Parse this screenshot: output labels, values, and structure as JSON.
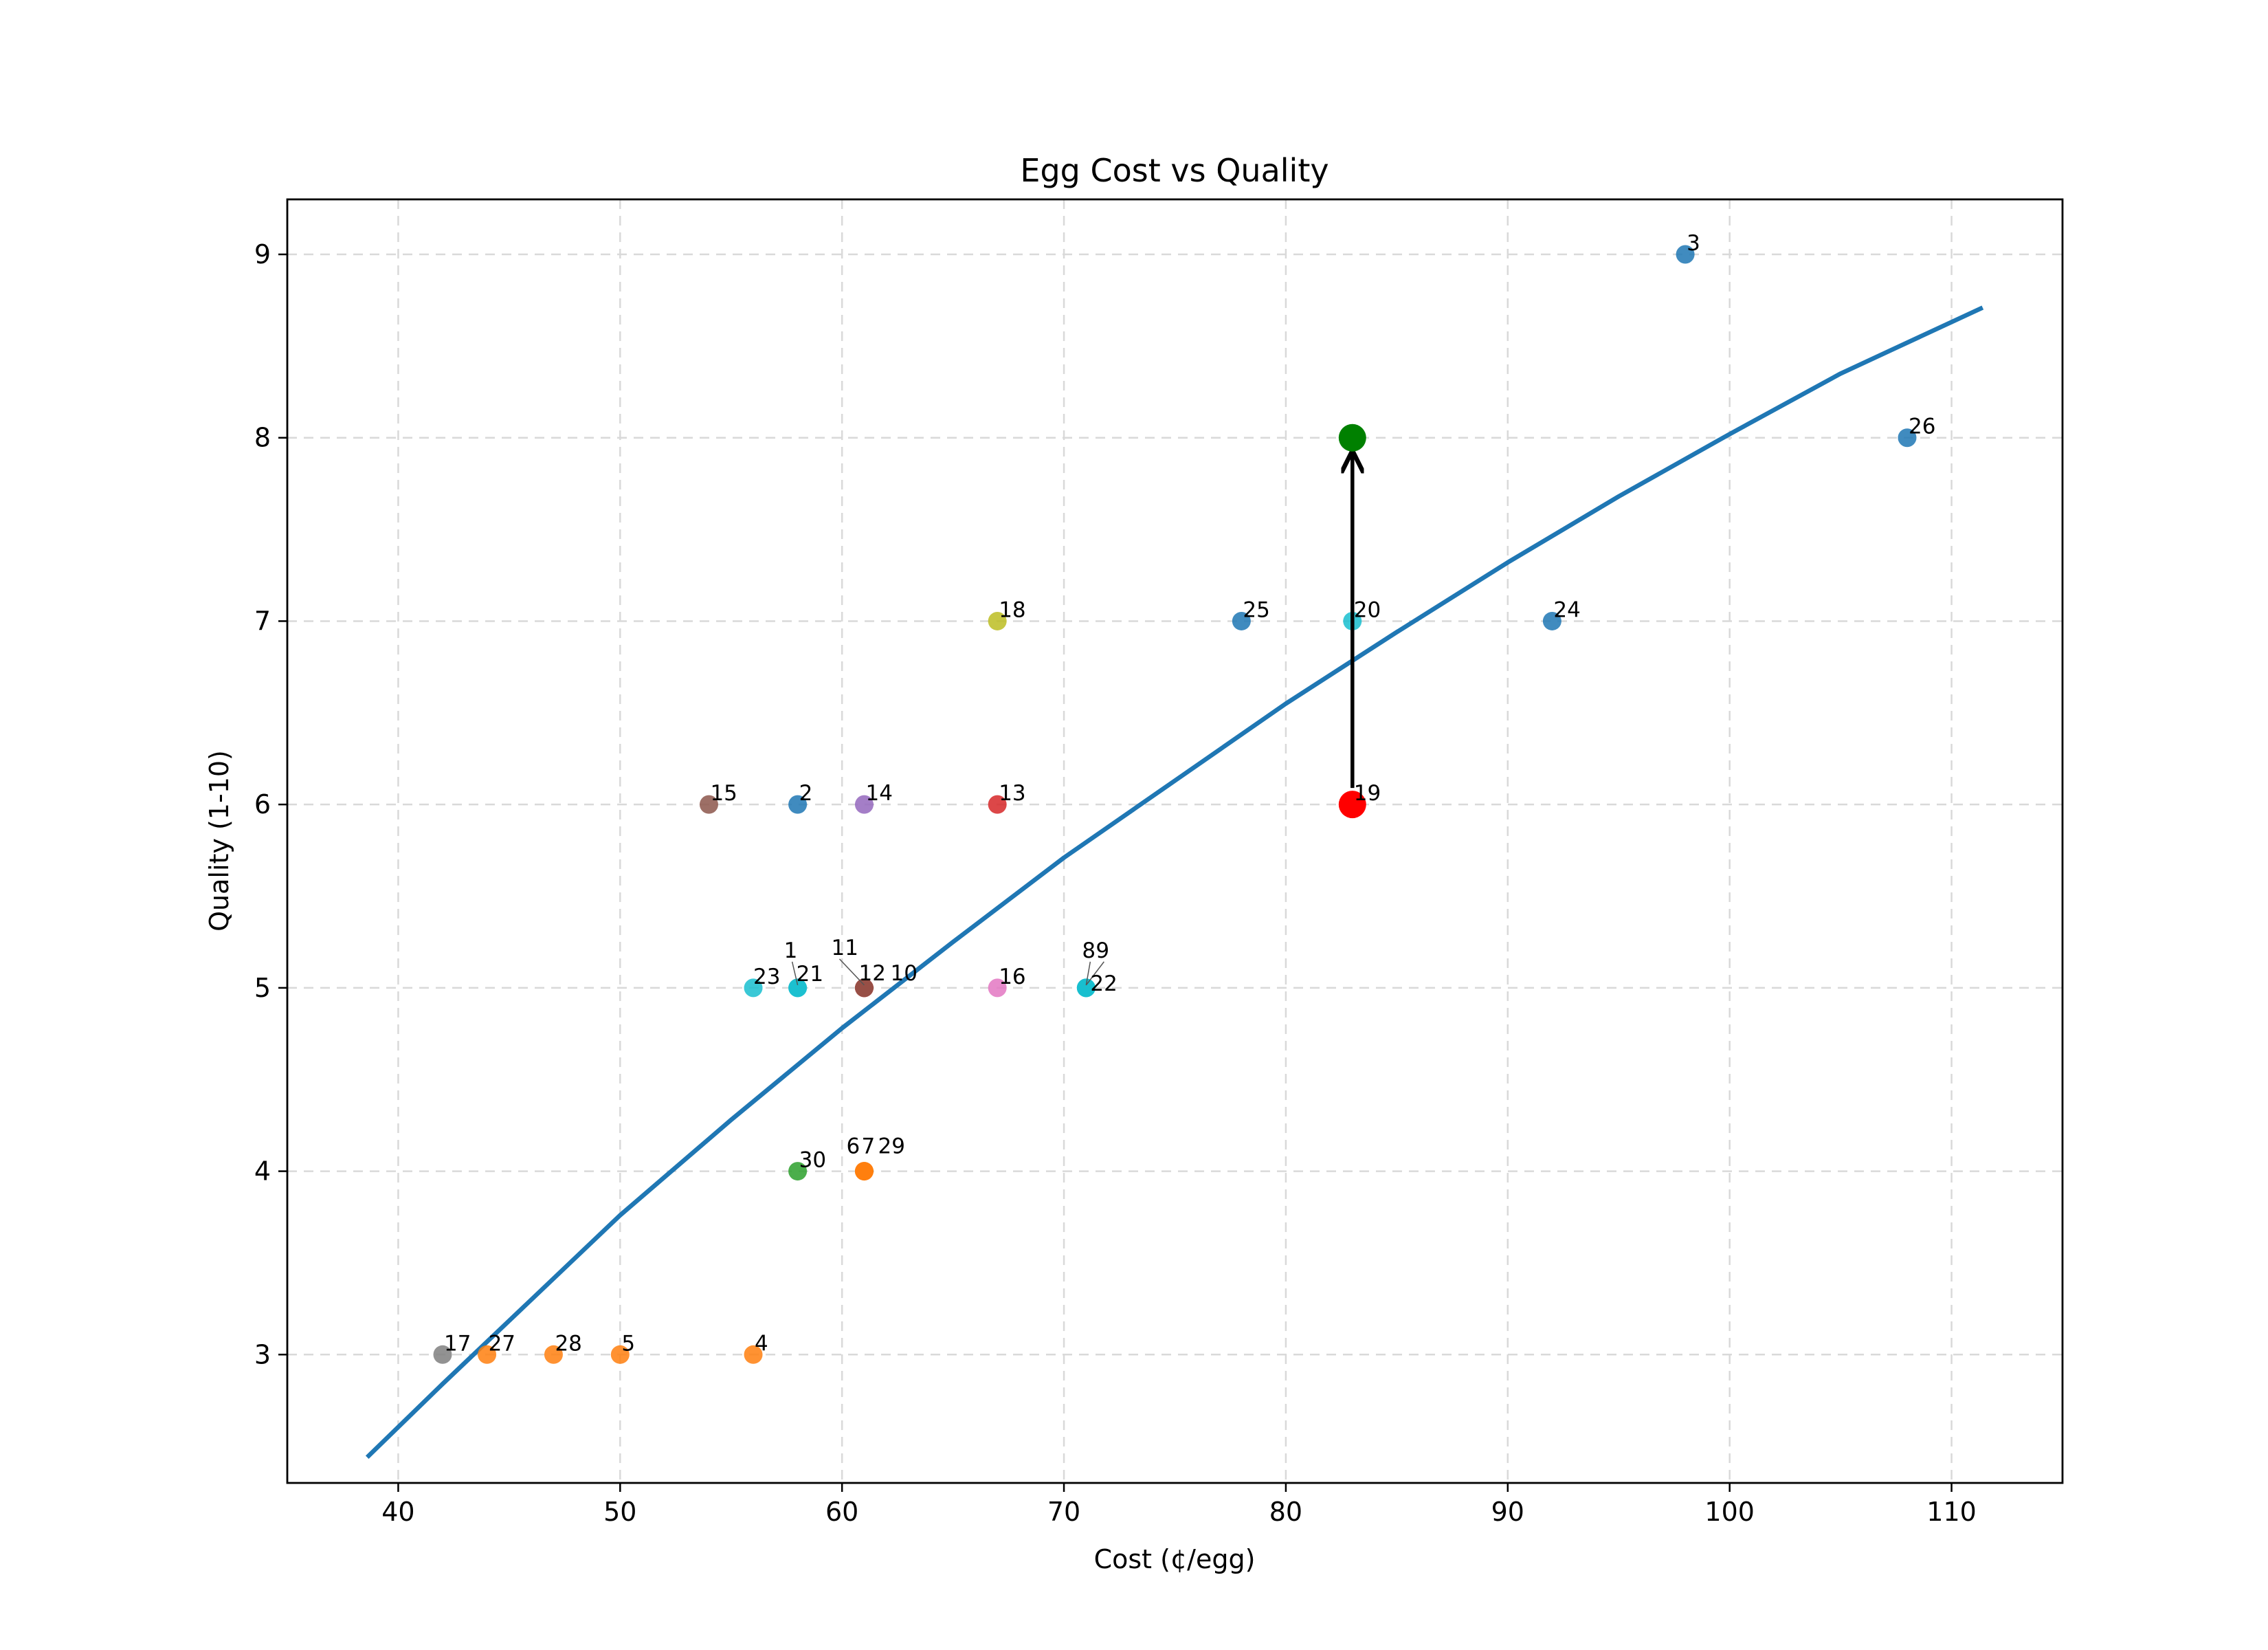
{
  "chart_data": {
    "type": "scatter",
    "title": "Egg Cost vs Quality",
    "xlabel": "Cost (¢/egg)",
    "ylabel": "Quality (1-10)",
    "xlim": [
      35,
      115
    ],
    "ylim": [
      2.3,
      9.3
    ],
    "xticks": [
      40,
      50,
      60,
      70,
      80,
      90,
      100,
      110
    ],
    "yticks": [
      3,
      4,
      5,
      6,
      7,
      8,
      9
    ],
    "grid": true,
    "points": [
      {
        "label": "1",
        "x": 58,
        "y": 5,
        "color": "#17becf"
      },
      {
        "label": "2",
        "x": 58,
        "y": 6,
        "color": "#1f77b4"
      },
      {
        "label": "3",
        "x": 98,
        "y": 9,
        "color": "#1f77b4"
      },
      {
        "label": "4",
        "x": 56,
        "y": 3,
        "color": "#ff7f0e"
      },
      {
        "label": "5",
        "x": 50,
        "y": 3,
        "color": "#ff7f0e"
      },
      {
        "label": "6",
        "x": 61,
        "y": 4,
        "color": "#ff7f0e"
      },
      {
        "label": "7",
        "x": 61,
        "y": 4,
        "color": "#ff7f0e"
      },
      {
        "label": "8",
        "x": 71,
        "y": 5,
        "color": "#17becf"
      },
      {
        "label": "9",
        "x": 71,
        "y": 5,
        "color": "#17becf"
      },
      {
        "label": "10",
        "x": 61,
        "y": 5,
        "color": "#d62728"
      },
      {
        "label": "11",
        "x": 61,
        "y": 5,
        "color": "#d62728"
      },
      {
        "label": "12",
        "x": 61,
        "y": 5,
        "color": "#8c564b"
      },
      {
        "label": "13",
        "x": 67,
        "y": 6,
        "color": "#d62728"
      },
      {
        "label": "14",
        "x": 61,
        "y": 6,
        "color": "#9467bd"
      },
      {
        "label": "15",
        "x": 54,
        "y": 6,
        "color": "#8c564b"
      },
      {
        "label": "16",
        "x": 67,
        "y": 5,
        "color": "#e377c2"
      },
      {
        "label": "17",
        "x": 42,
        "y": 3,
        "color": "#7f7f7f"
      },
      {
        "label": "18",
        "x": 67,
        "y": 7,
        "color": "#bcbd22"
      },
      {
        "label": "19",
        "x": 83,
        "y": 6,
        "color": "#ff0000"
      },
      {
        "label": "20",
        "x": 83,
        "y": 7,
        "color": "#17becf"
      },
      {
        "label": "21",
        "x": 58,
        "y": 5,
        "color": "#17becf"
      },
      {
        "label": "22",
        "x": 71,
        "y": 5,
        "color": "#17becf"
      },
      {
        "label": "23",
        "x": 56,
        "y": 5,
        "color": "#17becf"
      },
      {
        "label": "24",
        "x": 92,
        "y": 7,
        "color": "#1f77b4"
      },
      {
        "label": "25",
        "x": 78,
        "y": 7,
        "color": "#1f77b4"
      },
      {
        "label": "26",
        "x": 108,
        "y": 8,
        "color": "#1f77b4"
      },
      {
        "label": "27",
        "x": 44,
        "y": 3,
        "color": "#ff7f0e"
      },
      {
        "label": "28",
        "x": 47,
        "y": 3,
        "color": "#ff7f0e"
      },
      {
        "label": "29",
        "x": 61,
        "y": 4,
        "color": "#ff7f0e"
      },
      {
        "label": "30",
        "x": 58,
        "y": 4,
        "color": "#2ca02c"
      }
    ],
    "highlight": {
      "from": {
        "x": 83,
        "y": 6,
        "color": "#ff0000"
      },
      "to": {
        "x": 83,
        "y": 8,
        "color": "#008000"
      },
      "arrow_color": "#000000"
    },
    "fit_curve": {
      "color": "#1f77b4",
      "x": [
        38.6,
        42,
        46,
        50,
        55,
        60,
        65,
        70,
        75,
        80,
        85,
        90,
        95,
        100,
        105,
        111.4
      ],
      "y": [
        2.44,
        2.84,
        3.3,
        3.76,
        4.28,
        4.78,
        5.25,
        5.71,
        6.13,
        6.55,
        6.94,
        7.32,
        7.68,
        8.02,
        8.35,
        8.71
      ]
    }
  }
}
